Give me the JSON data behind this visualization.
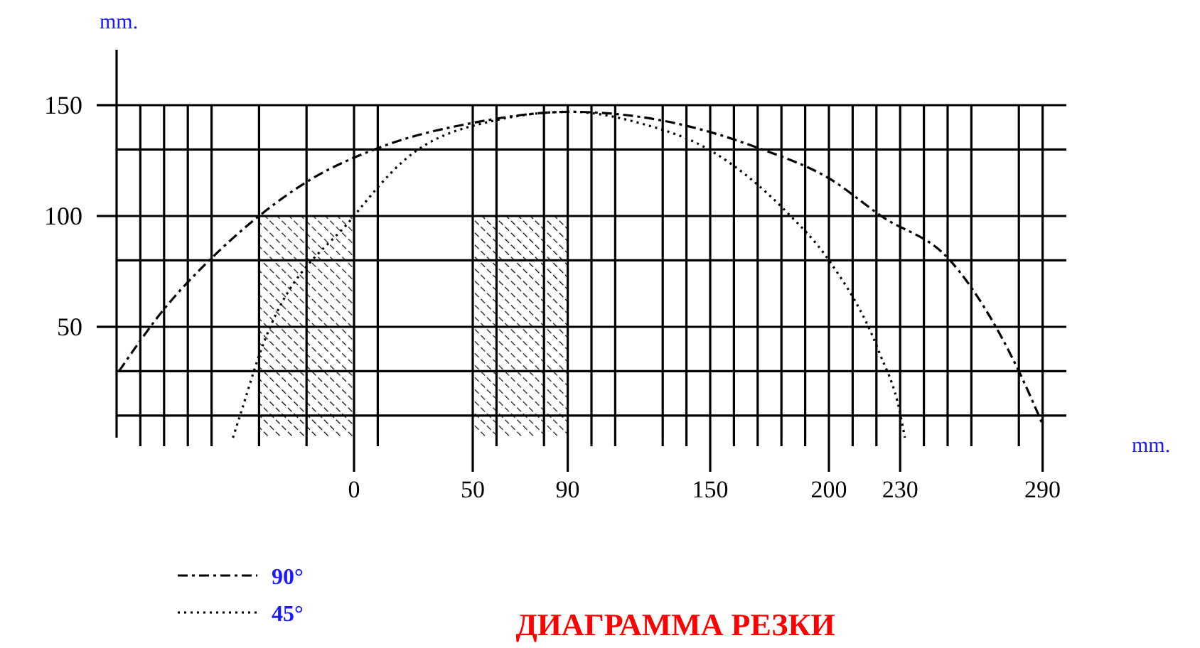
{
  "chart_data": {
    "type": "line",
    "title": "ДИАГРАММА РЕЗКИ",
    "xlabel": "mm.",
    "ylabel": "mm.",
    "xlim": [
      -100,
      300
    ],
    "ylim": [
      0,
      175
    ],
    "xticks": [
      {
        "value": -90,
        "label": null
      },
      {
        "value": -80,
        "label": null
      },
      {
        "value": -70,
        "label": null
      },
      {
        "value": -60,
        "label": null
      },
      {
        "value": -40,
        "label": null
      },
      {
        "value": -20,
        "label": null
      },
      0,
      {
        "value": 10,
        "label": null
      },
      50,
      {
        "value": 60,
        "label": null
      },
      {
        "value": 80,
        "label": null
      },
      90,
      {
        "value": 100,
        "label": null
      },
      {
        "value": 110,
        "label": null
      },
      {
        "value": 130,
        "label": null
      },
      {
        "value": 140,
        "label": null
      },
      150,
      {
        "value": 160,
        "label": null
      },
      {
        "value": 170,
        "label": null
      },
      {
        "value": 180,
        "label": null
      },
      {
        "value": 190,
        "label": null
      },
      200,
      {
        "value": 210,
        "label": null
      },
      {
        "value": 220,
        "label": null
      },
      230,
      {
        "value": 240,
        "label": null
      },
      {
        "value": 250,
        "label": null
      },
      {
        "value": 260,
        "label": null
      },
      {
        "value": 280,
        "label": null
      },
      290
    ],
    "yticks": [
      {
        "value": 10,
        "label": null
      },
      {
        "value": 30,
        "label": null
      },
      50,
      {
        "value": 80,
        "label": null
      },
      100,
      {
        "value": 130,
        "label": null
      },
      150
    ],
    "grid": true,
    "legend": "bottom left",
    "series": [
      {
        "name": "90°",
        "color": "#000000",
        "line_style": "dashed",
        "x": [
          -99,
          -80,
          -60,
          -40,
          -19,
          11,
          50,
          91,
          130,
          172,
          200,
          222,
          251,
          280,
          290
        ],
        "values": [
          30,
          58,
          81,
          100,
          116,
          131,
          142,
          147,
          143,
          130,
          117,
          100,
          80,
          30,
          6
        ]
      },
      {
        "name": "45°",
        "color": "#000000",
        "line_style": "dotted",
        "x": [
          -51,
          -48,
          -40,
          0,
          21,
          59,
          91,
          120,
          151,
          182,
          200,
          221,
          230,
          232
        ],
        "values": [
          0,
          10,
          37,
          100,
          125,
          143,
          147,
          142,
          129,
          102,
          80,
          39,
          11,
          0
        ]
      },
      {
        "type": "area",
        "color": "#000000",
        "x": [
          -40,
          0
        ],
        "values": [
          100,
          100
        ]
      },
      {
        "type": "area",
        "color": "#000000",
        "x": [
          50,
          90
        ],
        "values": [
          100,
          100
        ]
      }
    ]
  }
}
